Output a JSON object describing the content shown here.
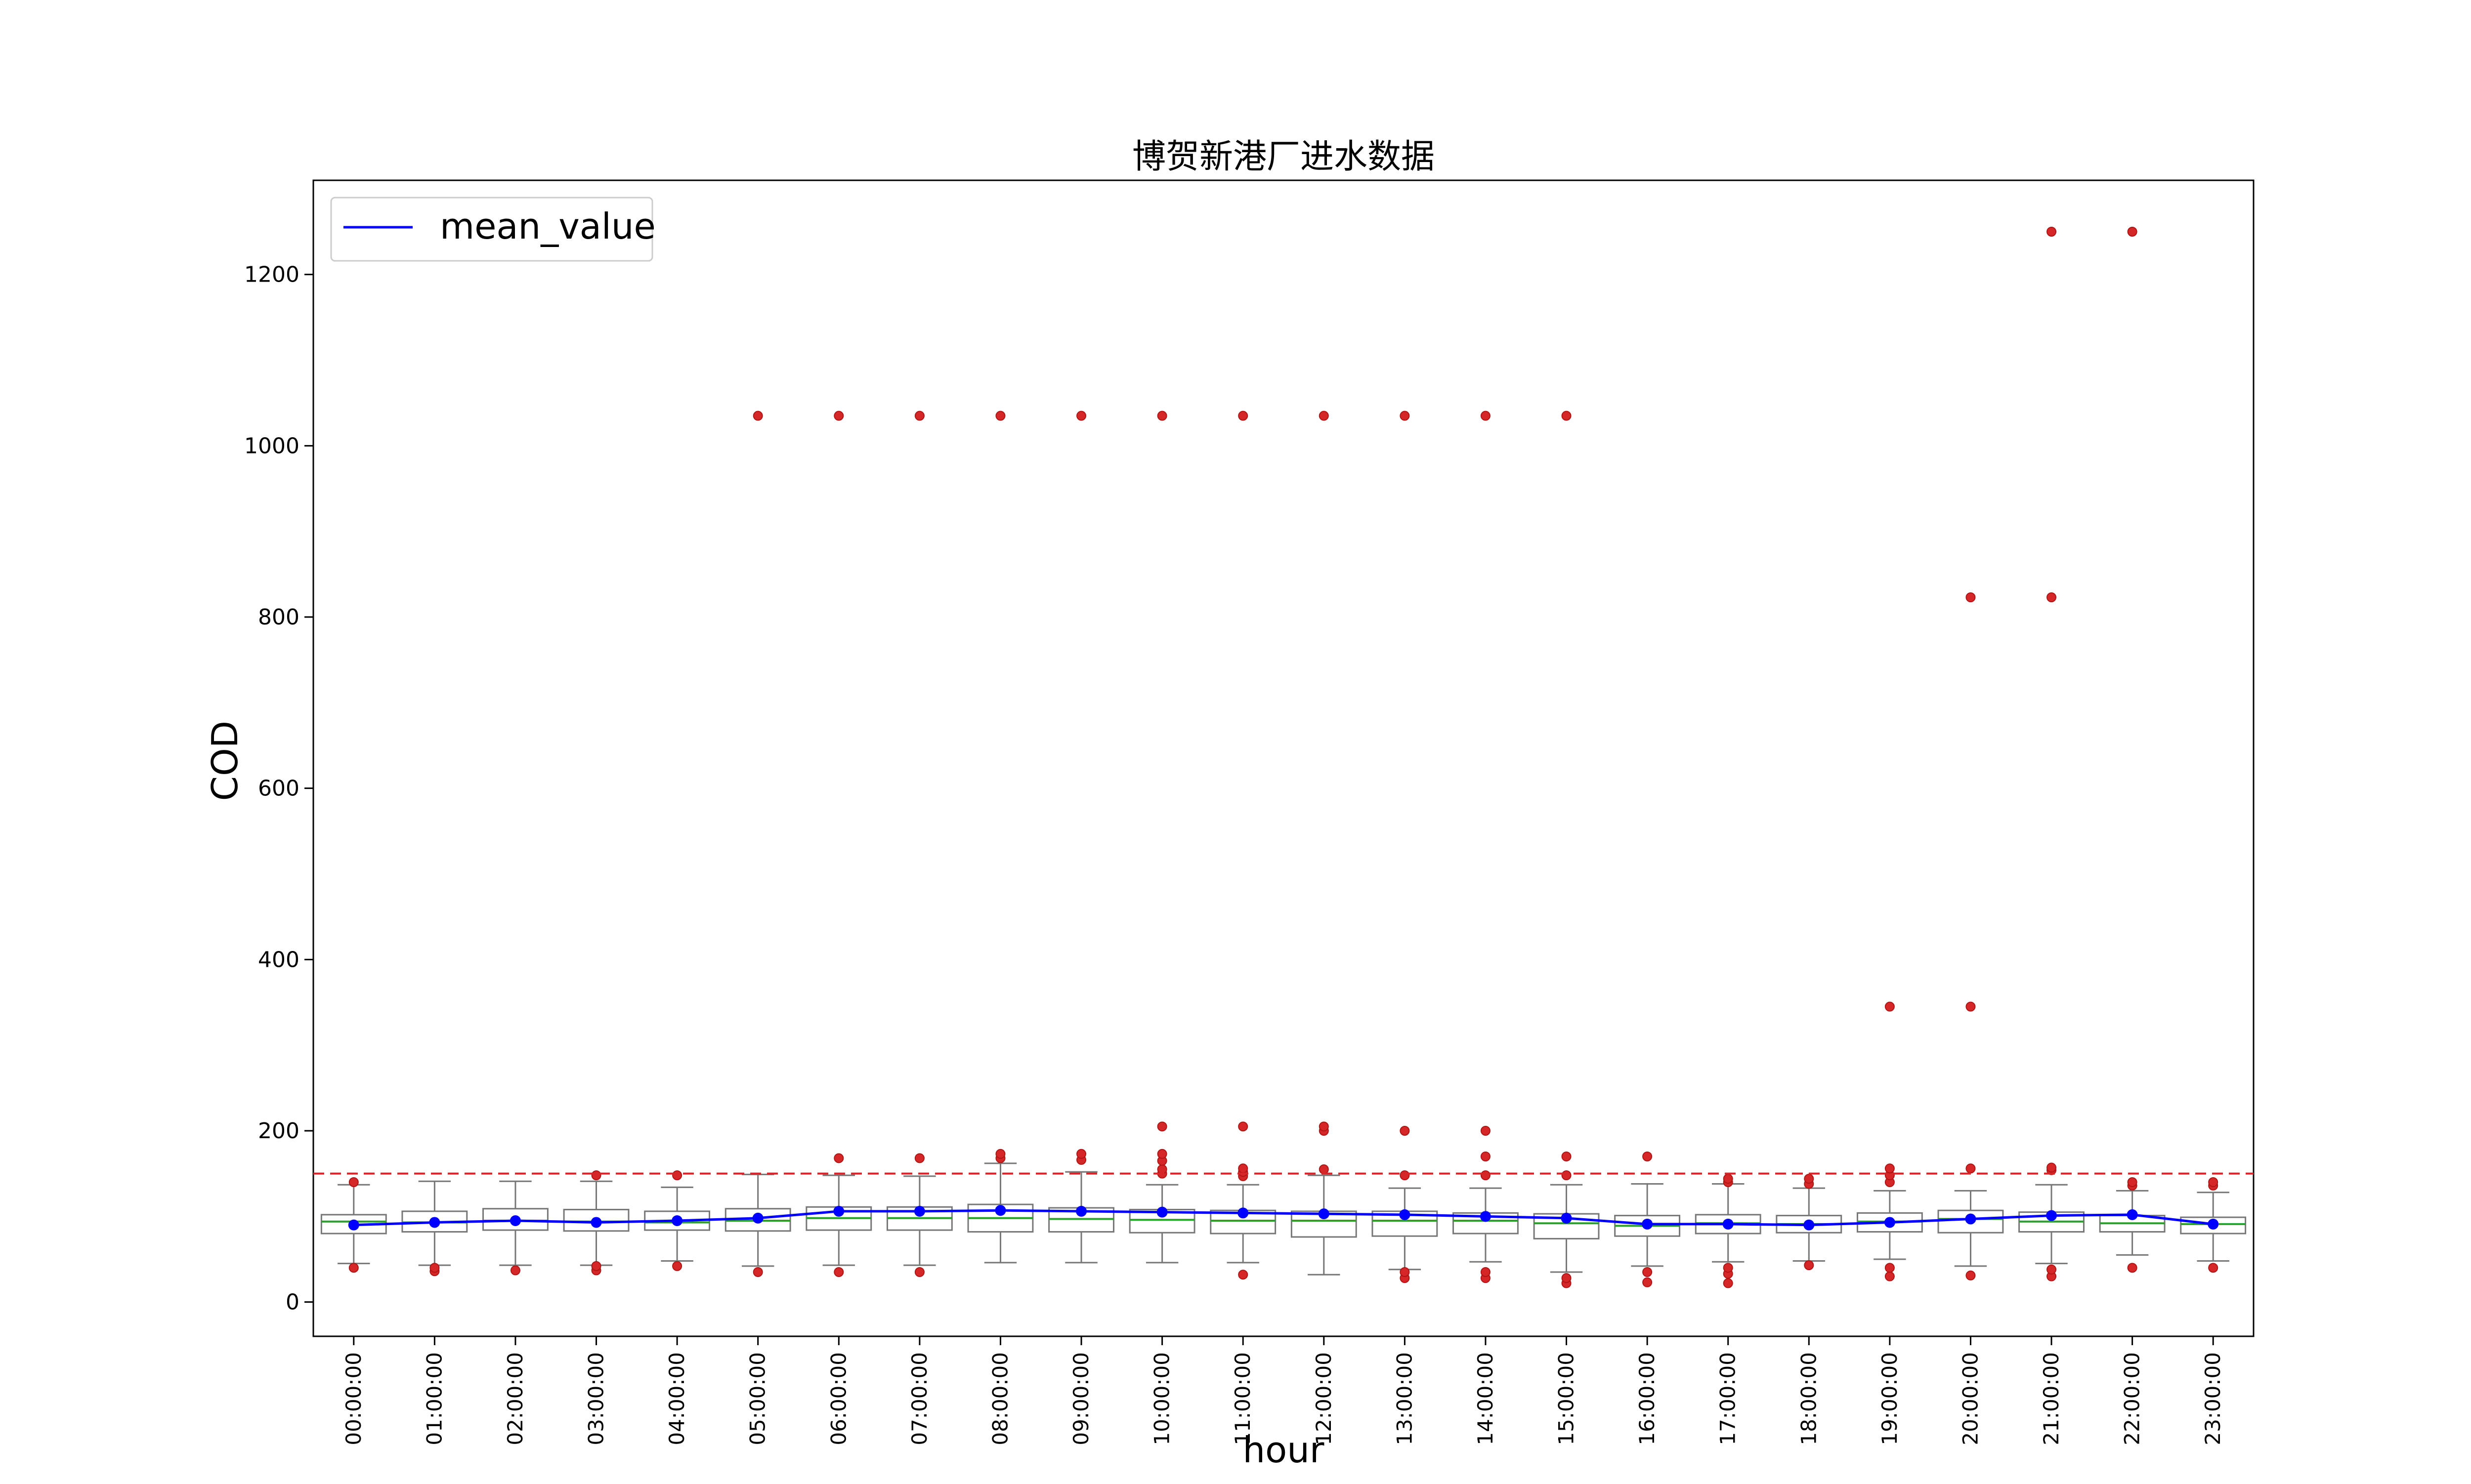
{
  "chart_data": {
    "type": "box",
    "title": "博贺新港厂进水数据",
    "xlabel": "hour",
    "ylabel": "COD",
    "ylim": [
      -40,
      1310
    ],
    "yticks": [
      0,
      200,
      400,
      600,
      800,
      1000,
      1200
    ],
    "grid": false,
    "legend": {
      "position": "top-left",
      "entries": [
        "mean_value"
      ]
    },
    "threshold_line": {
      "value": 150,
      "style": "dashed",
      "color": "#d62728"
    },
    "colors": {
      "box": "#777777",
      "median": "#2ca02c",
      "mean": "#0000ff",
      "outlier": "#d62728",
      "threshold": "#d62728"
    },
    "categories": [
      "00:00:00",
      "01:00:00",
      "02:00:00",
      "03:00:00",
      "04:00:00",
      "05:00:00",
      "06:00:00",
      "07:00:00",
      "08:00:00",
      "09:00:00",
      "10:00:00",
      "11:00:00",
      "12:00:00",
      "13:00:00",
      "14:00:00",
      "15:00:00",
      "16:00:00",
      "17:00:00",
      "18:00:00",
      "19:00:00",
      "20:00:00",
      "21:00:00",
      "22:00:00",
      "23:00:00"
    ],
    "boxes": [
      {
        "whisker_low": 45,
        "q1": 80,
        "median": 94,
        "q3": 102,
        "whisker_high": 137,
        "outliers": [
          40,
          140
        ]
      },
      {
        "whisker_low": 43,
        "q1": 82,
        "median": 93,
        "q3": 106,
        "whisker_high": 141,
        "outliers": [
          36,
          40
        ]
      },
      {
        "whisker_low": 43,
        "q1": 84,
        "median": 95,
        "q3": 109,
        "whisker_high": 141,
        "outliers": [
          37
        ]
      },
      {
        "whisker_low": 43,
        "q1": 83,
        "median": 94,
        "q3": 108,
        "whisker_high": 141,
        "outliers": [
          37,
          42,
          148
        ]
      },
      {
        "whisker_low": 48,
        "q1": 84,
        "median": 93,
        "q3": 106,
        "whisker_high": 134,
        "outliers": [
          42,
          148
        ]
      },
      {
        "whisker_low": 42,
        "q1": 83,
        "median": 95,
        "q3": 109,
        "whisker_high": 149,
        "outliers": [
          35,
          1035
        ]
      },
      {
        "whisker_low": 43,
        "q1": 84,
        "median": 98,
        "q3": 111,
        "whisker_high": 148,
        "outliers": [
          35,
          168,
          1035
        ]
      },
      {
        "whisker_low": 43,
        "q1": 84,
        "median": 98,
        "q3": 111,
        "whisker_high": 147,
        "outliers": [
          35,
          168,
          1035
        ]
      },
      {
        "whisker_low": 46,
        "q1": 82,
        "median": 98,
        "q3": 114,
        "whisker_high": 162,
        "outliers": [
          168,
          173,
          1035
        ]
      },
      {
        "whisker_low": 46,
        "q1": 82,
        "median": 97,
        "q3": 110,
        "whisker_high": 152,
        "outliers": [
          166,
          173,
          1035
        ]
      },
      {
        "whisker_low": 46,
        "q1": 81,
        "median": 96,
        "q3": 108,
        "whisker_high": 137,
        "outliers": [
          150,
          155,
          165,
          173,
          205,
          1035
        ]
      },
      {
        "whisker_low": 46,
        "q1": 80,
        "median": 95,
        "q3": 107,
        "whisker_high": 137,
        "outliers": [
          32,
          147,
          152,
          156,
          205,
          1035
        ]
      },
      {
        "whisker_low": 32,
        "q1": 76,
        "median": 95,
        "q3": 106,
        "whisker_high": 148,
        "outliers": [
          155,
          200,
          205,
          1035
        ]
      },
      {
        "whisker_low": 38,
        "q1": 77,
        "median": 95,
        "q3": 106,
        "whisker_high": 133,
        "outliers": [
          28,
          35,
          148,
          200,
          1035
        ]
      },
      {
        "whisker_low": 47,
        "q1": 80,
        "median": 95,
        "q3": 104,
        "whisker_high": 133,
        "outliers": [
          28,
          35,
          148,
          170,
          200,
          1035
        ]
      },
      {
        "whisker_low": 35,
        "q1": 74,
        "median": 92,
        "q3": 103,
        "whisker_high": 137,
        "outliers": [
          22,
          28,
          148,
          170,
          1035
        ]
      },
      {
        "whisker_low": 42,
        "q1": 77,
        "median": 89,
        "q3": 101,
        "whisker_high": 138,
        "outliers": [
          23,
          35,
          170
        ]
      },
      {
        "whisker_low": 47,
        "q1": 80,
        "median": 92,
        "q3": 102,
        "whisker_high": 138,
        "outliers": [
          22,
          33,
          40,
          140,
          144
        ]
      },
      {
        "whisker_low": 48,
        "q1": 81,
        "median": 91,
        "q3": 101,
        "whisker_high": 133,
        "outliers": [
          43,
          138,
          144
        ]
      },
      {
        "whisker_low": 50,
        "q1": 82,
        "median": 94,
        "q3": 104,
        "whisker_high": 130,
        "outliers": [
          30,
          40,
          140,
          148,
          156,
          345
        ]
      },
      {
        "whisker_low": 42,
        "q1": 81,
        "median": 97,
        "q3": 107,
        "whisker_high": 130,
        "outliers": [
          31,
          156,
          345,
          823
        ]
      },
      {
        "whisker_low": 45,
        "q1": 82,
        "median": 94,
        "q3": 105,
        "whisker_high": 137,
        "outliers": [
          30,
          38,
          154,
          157,
          823,
          1250
        ]
      },
      {
        "whisker_low": 55,
        "q1": 82,
        "median": 92,
        "q3": 101,
        "whisker_high": 130,
        "outliers": [
          40,
          136,
          140,
          1250
        ]
      },
      {
        "whisker_low": 48,
        "q1": 80,
        "median": 91,
        "q3": 99,
        "whisker_high": 128,
        "outliers": [
          40,
          136,
          140
        ]
      }
    ],
    "series": [
      {
        "name": "mean_value",
        "type": "line",
        "values": [
          90,
          93,
          95,
          93,
          95,
          98,
          106,
          106,
          107,
          106,
          105,
          104,
          103,
          102,
          100,
          98,
          91,
          91,
          90,
          93,
          97,
          101,
          102,
          91
        ]
      }
    ]
  }
}
